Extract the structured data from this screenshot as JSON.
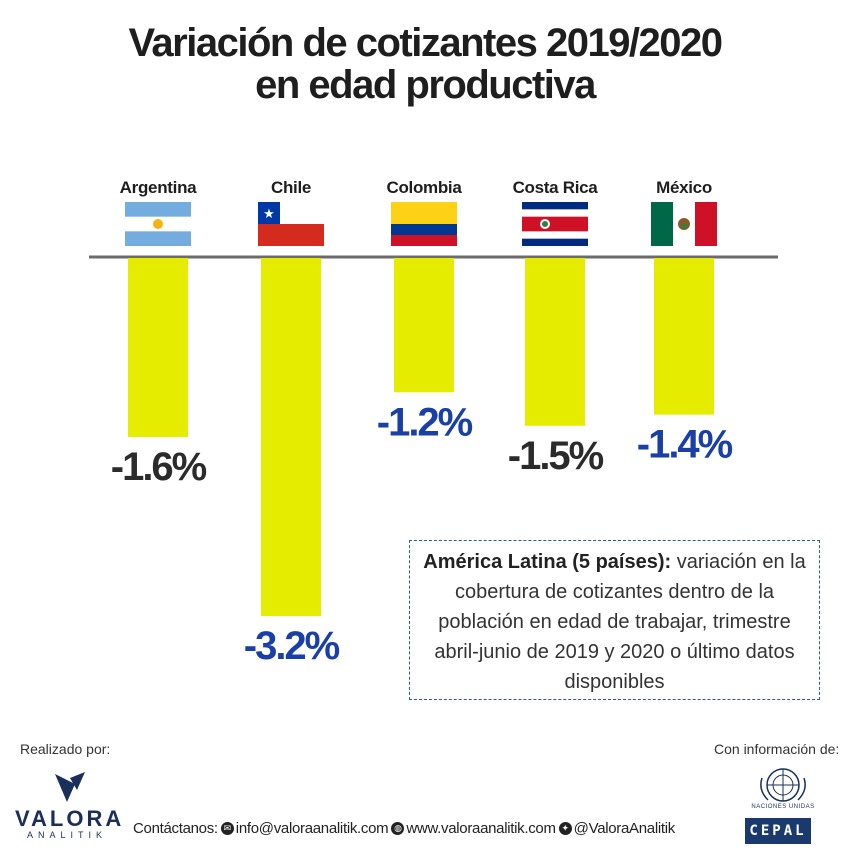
{
  "title": {
    "line1": "Variación de cotizantes 2019/2020",
    "line2": "en edad productiva"
  },
  "chart_data": {
    "type": "bar",
    "categories": [
      "Argentina",
      "Chile",
      "Colombia",
      "Costa Rica",
      "México"
    ],
    "values": [
      -1.6,
      -3.2,
      -1.2,
      -1.5,
      -1.4
    ],
    "value_labels": [
      "-1.6%",
      "-3.2%",
      "-1.2%",
      "-1.5%",
      "-1.4%"
    ],
    "label_colors": [
      "#2b2b2b",
      "#1a3fa6",
      "#1a3fa6",
      "#2b2b2b",
      "#1a3fa6"
    ],
    "bar_color": "#e6ec00",
    "baseline_color": "#6b6b6b",
    "ylim": [
      -3.2,
      0
    ],
    "flags": [
      "argentina-flag",
      "chile-flag",
      "colombia-flag",
      "costa-rica-flag",
      "mexico-flag"
    ]
  },
  "note": {
    "bold": "América Latina (5 países):",
    "text": " variación en la cobertura de cotizantes dentro de la población en edad de trabajar, trimestre abril-junio de 2019 y 2020 o último datos disponibles"
  },
  "footer": {
    "made_by": "Realizado por:",
    "logo_word": "VALORA",
    "logo_sub": "ANALITIK",
    "contact_label": "Contáctanos:",
    "email": "info@valoraanalitik.com",
    "website": "www.valoraanalitik.com",
    "twitter": "@ValoraAnalitik",
    "info_from": "Con información de:",
    "un_text": "NACIONES UNIDAS",
    "cepal": "CEPAL"
  }
}
